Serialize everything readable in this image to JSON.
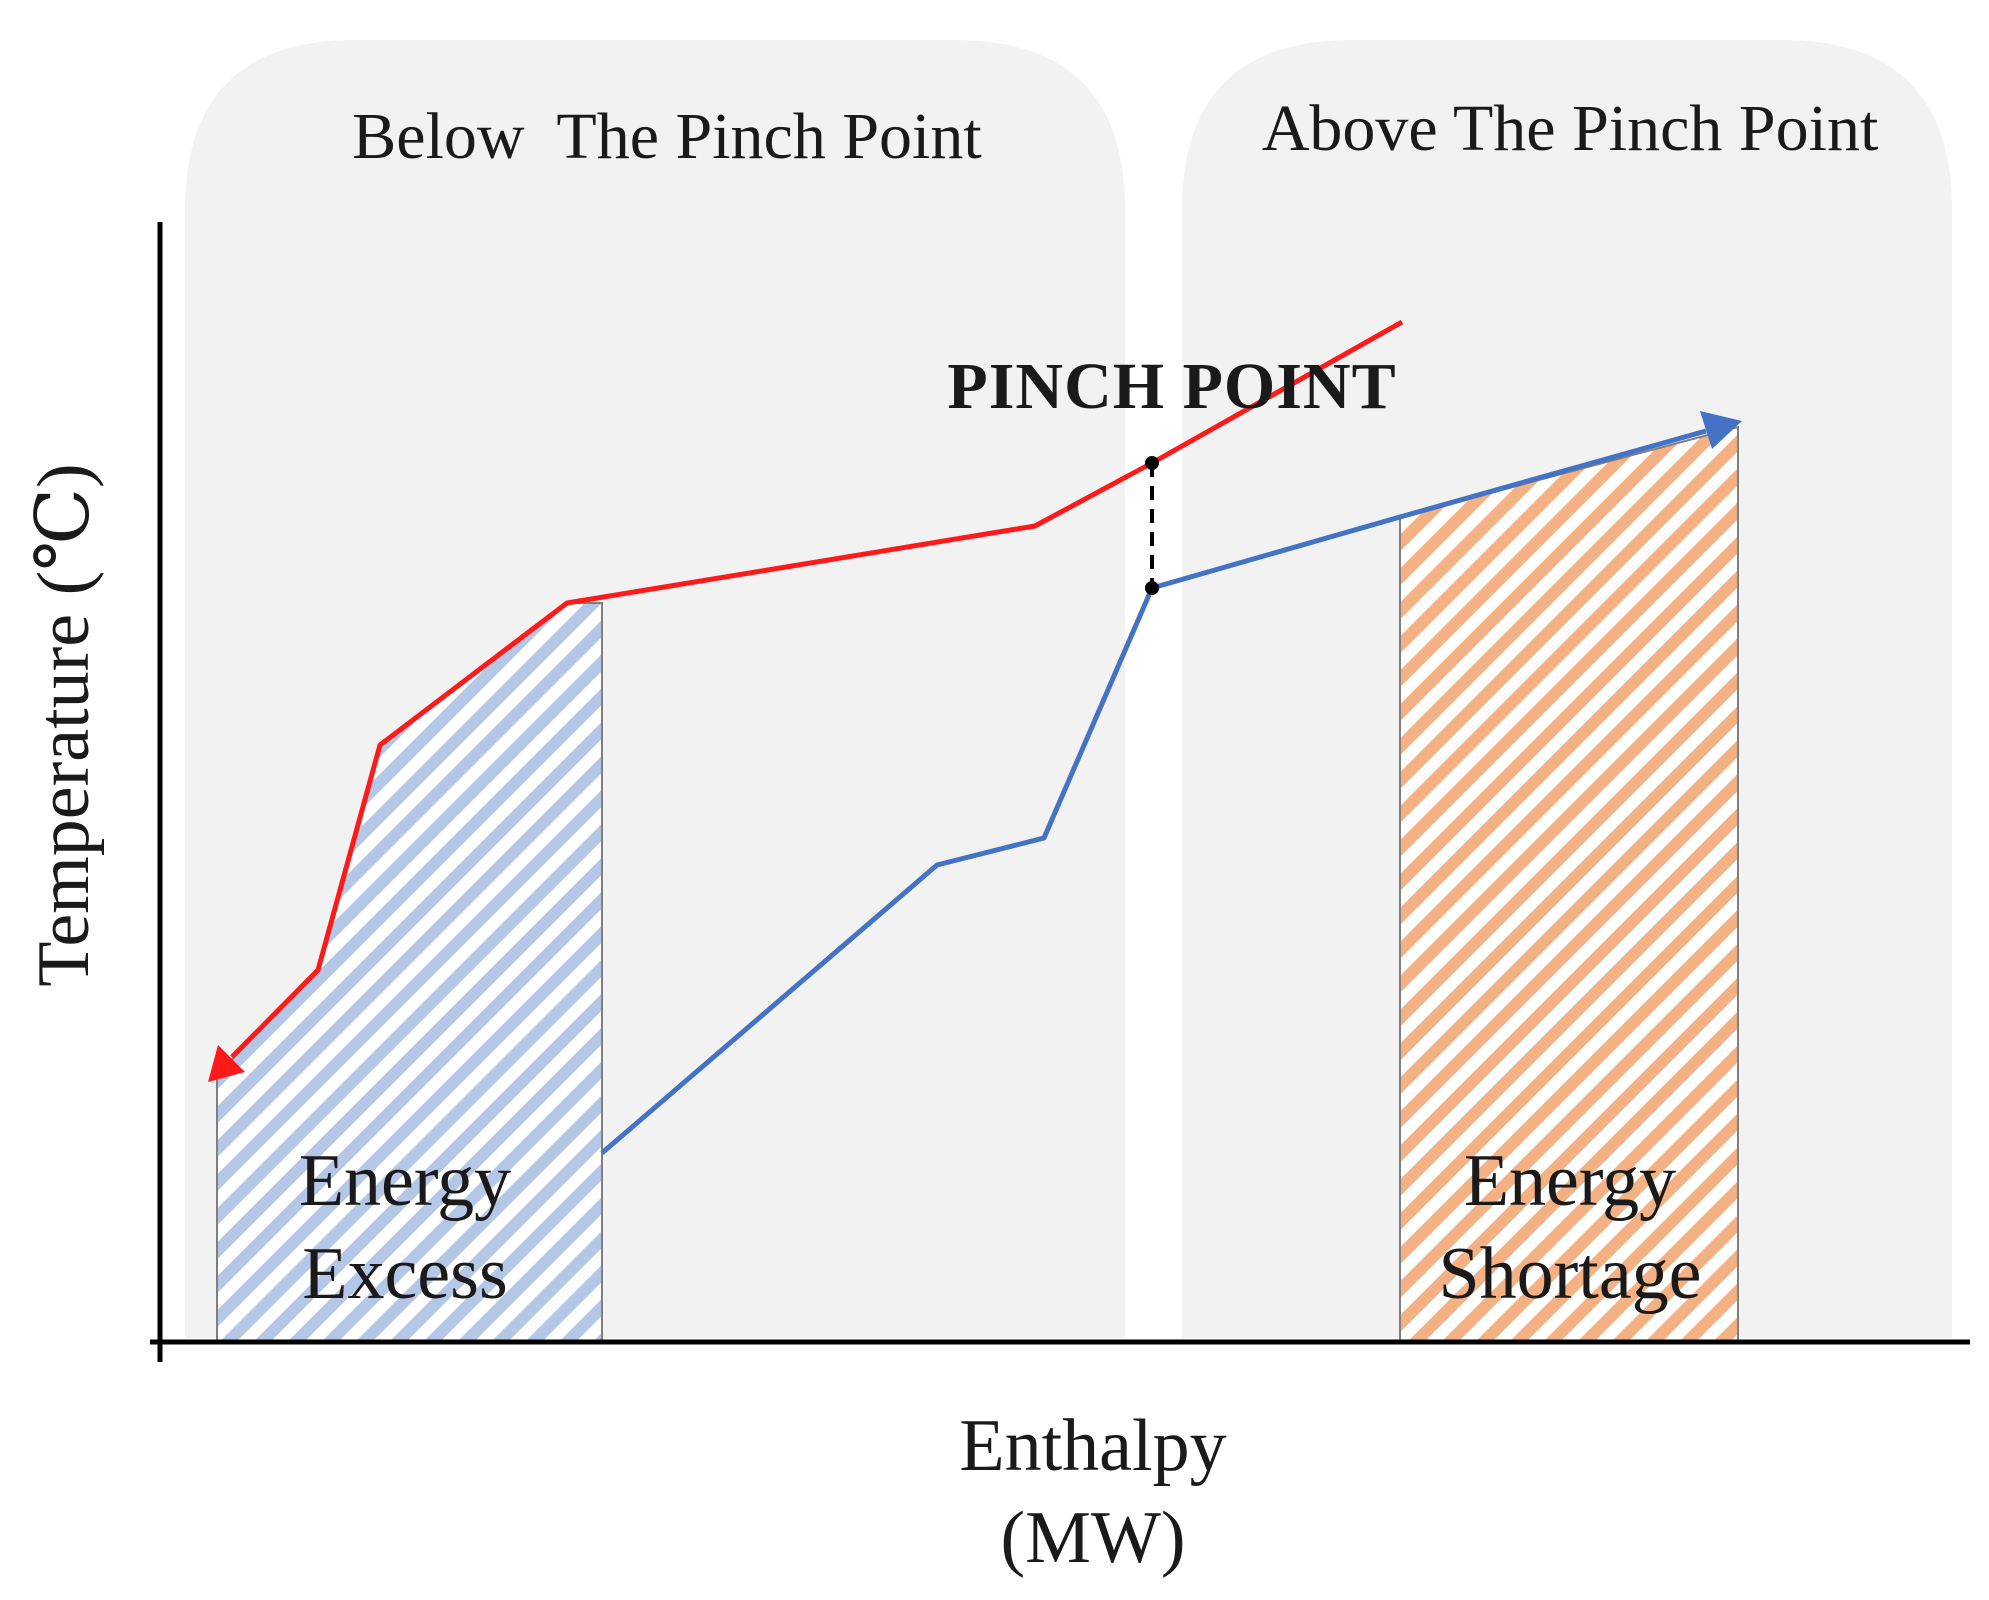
{
  "regions": {
    "below_title": "Below  The Pinch Point",
    "above_title": "Above The Pinch Point"
  },
  "pinch_label": "PINCH POINT",
  "areas": {
    "excess": {
      "line1": "Energy",
      "line2": "Excess"
    },
    "shortage": {
      "line1": "Energy",
      "line2": "Shortage"
    }
  },
  "axes": {
    "y_label": "Temperature (℃)",
    "x_label_line1": "Enthalpy",
    "x_label_line2": "(MW)"
  },
  "colors": {
    "hot_curve": "#ff1a1a",
    "cold_curve": "#4472c4",
    "region_fill": "#f2f2f2",
    "excess_hatch": "#b4c7e7",
    "shortage_hatch": "#f4b183",
    "axis": "#000000"
  }
}
